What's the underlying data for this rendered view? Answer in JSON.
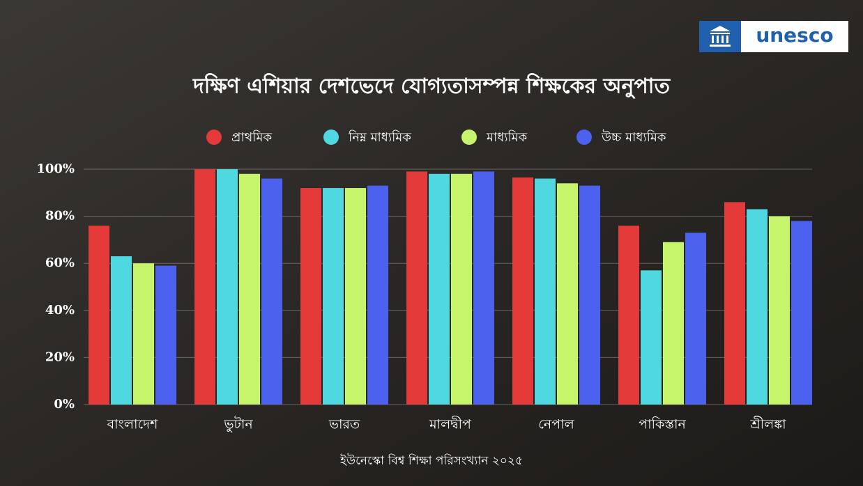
{
  "brand": "unesco",
  "chart_data": {
    "type": "bar",
    "title": "দক্ষিণ এশিয়ার দেশভেদে যোগ্যতাসম্পন্ন শিক্ষকের অনুপাত",
    "source": "ইউনেস্কো বিশ্ব শিক্ষা পরিসংখ্যান ২০২৫",
    "categories": [
      "বাংলাদেশ",
      "ভুটান",
      "ভারত",
      "মালদ্বীপ",
      "নেপাল",
      "পাকিস্তান",
      "শ্রীলঙ্কা"
    ],
    "series": [
      {
        "name": "প্রাথমিক",
        "color": "#e53a3a",
        "values": [
          76,
          100,
          92,
          99,
          96.5,
          76,
          86
        ]
      },
      {
        "name": "নিম্ন মাধ্যমিক",
        "color": "#4fd8e0",
        "values": [
          63,
          100,
          92,
          98,
          96,
          57,
          83
        ]
      },
      {
        "name": "মাধ্যমিক",
        "color": "#c6f46a",
        "values": [
          60,
          98,
          92,
          98,
          94,
          69,
          80
        ]
      },
      {
        "name": "উচ্চ মাধ্যমিক",
        "color": "#4c62ef",
        "values": [
          59,
          96,
          93,
          99,
          93,
          73,
          78
        ]
      }
    ],
    "ylim": [
      0,
      100
    ],
    "yticks": [
      {
        "value": 0,
        "label": "0%"
      },
      {
        "value": 20,
        "label": "20%"
      },
      {
        "value": 40,
        "label": "40%"
      },
      {
        "value": 60,
        "label": "60%"
      },
      {
        "value": 80,
        "label": "80%"
      },
      {
        "value": 100,
        "label": "100%"
      }
    ],
    "grid": true
  }
}
